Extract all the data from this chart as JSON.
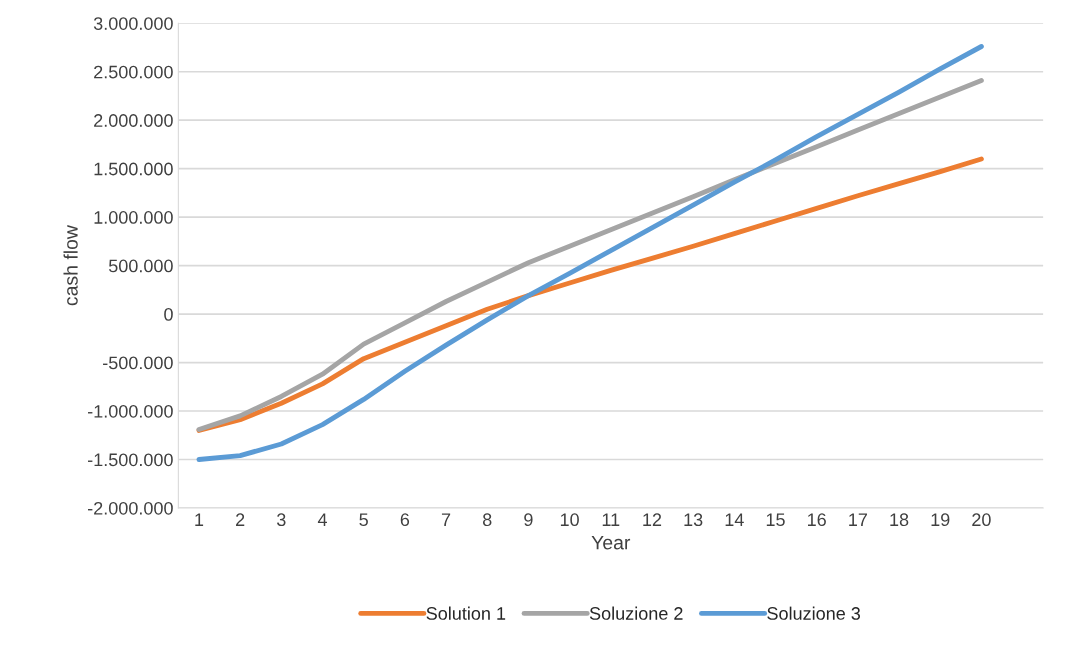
{
  "chart_data": {
    "type": "line",
    "xlabel": "Year",
    "ylabel": "cash flow",
    "categories": [
      "1",
      "2",
      "3",
      "4",
      "5",
      "6",
      "7",
      "8",
      "9",
      "10",
      "11",
      "12",
      "13",
      "14",
      "15",
      "16",
      "17",
      "18",
      "19",
      "20"
    ],
    "series": [
      {
        "name": "Solution 1",
        "color": "#ed7d31",
        "values": [
          -1200000,
          -1090000,
          -920000,
          -720000,
          -460000,
          -290000,
          -120000,
          50000,
          190000,
          320000,
          450000,
          575000,
          700000,
          830000,
          960000,
          1090000,
          1220000,
          1345000,
          1470000,
          1600000
        ]
      },
      {
        "name": "Soluzione 2",
        "color": "#a5a5a5",
        "values": [
          -1190000,
          -1050000,
          -850000,
          -620000,
          -310000,
          -90000,
          130000,
          330000,
          530000,
          700000,
          870000,
          1040000,
          1210000,
          1385000,
          1555000,
          1725000,
          1900000,
          2070000,
          2240000,
          2410000
        ]
      },
      {
        "name": "Soluzione 3",
        "color": "#5b9bd5",
        "values": [
          -1500000,
          -1460000,
          -1340000,
          -1140000,
          -880000,
          -590000,
          -320000,
          -60000,
          190000,
          420000,
          655000,
          890000,
          1125000,
          1360000,
          1590000,
          1830000,
          2060000,
          2290000,
          2530000,
          2760000
        ]
      }
    ],
    "ylim": [
      -2000000,
      3000000
    ],
    "yticks": [
      {
        "value": -2000000,
        "label": "-2.000.000"
      },
      {
        "value": -1500000,
        "label": "-1.500.000"
      },
      {
        "value": -1000000,
        "label": "-1.000.000"
      },
      {
        "value": -500000,
        "label": "-500.000"
      },
      {
        "value": 0,
        "label": "0"
      },
      {
        "value": 500000,
        "label": "500.000"
      },
      {
        "value": 1000000,
        "label": "1.000.000"
      },
      {
        "value": 1500000,
        "label": "1.500.000"
      },
      {
        "value": 2000000,
        "label": "2.000.000"
      },
      {
        "value": 2500000,
        "label": "2.500.000"
      },
      {
        "value": 3000000,
        "label": "3.000.000"
      }
    ],
    "grid": "y",
    "legend": "bottom",
    "marker": "none",
    "line_style": "solid"
  }
}
